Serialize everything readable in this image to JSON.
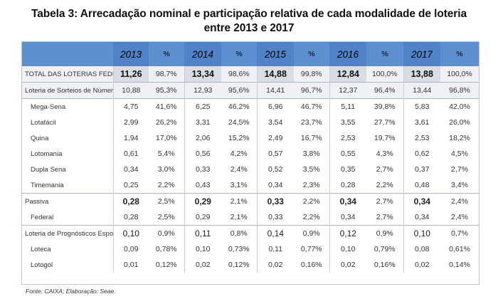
{
  "title": {
    "line1": "Tabela 3: Arrecadação nominal e participação relativa de cada modalidade de loteria",
    "line2": "entre 2013 e 2017"
  },
  "header": {
    "columns": [
      "2013",
      "%",
      "2014",
      "%",
      "2015",
      "%",
      "2016",
      "%",
      "2017",
      "%"
    ]
  },
  "rows": [
    {
      "label": "TOTAL DAS LOTERIAS FEDERAIS",
      "values": [
        "11,26",
        "98,7%",
        "13,34",
        "98,6%",
        "14,88",
        "99,8%",
        "12,84",
        "100,0%",
        "13,88",
        "100,0%"
      ]
    },
    {
      "label": "Loteria de Sorteios de Números",
      "values": [
        "10,88",
        "95,3%",
        "12,93",
        "95,6%",
        "14,41",
        "96,7%",
        "12,37",
        "96,4%",
        "13,44",
        "96,8%"
      ]
    },
    {
      "label": "Mega-Sena",
      "values": [
        "4,75",
        "41,6%",
        "6,25",
        "46,2%",
        "6,96",
        "46,7%",
        "5,11",
        "39,8%",
        "5,83",
        "42,0%"
      ]
    },
    {
      "label": "Lotafácil",
      "values": [
        "2,99",
        "26,2%",
        "3,31",
        "24,5%",
        "3,54",
        "23,7%",
        "3,55",
        "27,7%",
        "3,61",
        "26,0%"
      ]
    },
    {
      "label": "Quina",
      "values": [
        "1,94",
        "17,0%",
        "2,06",
        "15,2%",
        "2,49",
        "16,7%",
        "2,53",
        "19,7%",
        "2,53",
        "18,2%"
      ]
    },
    {
      "label": "Lotomania",
      "values": [
        "0,61",
        "5,4%",
        "0,56",
        "4,2%",
        "0,57",
        "3,8%",
        "0,55",
        "4,3%",
        "0,62",
        "4,5%"
      ]
    },
    {
      "label": "Dupla Sena",
      "values": [
        "0,34",
        "3,0%",
        "0,33",
        "2,4%",
        "0,52",
        "3,5%",
        "0,35",
        "2,7%",
        "0,37",
        "2,7%"
      ]
    },
    {
      "label": "Timemania",
      "values": [
        "0,25",
        "2,2%",
        "0,43",
        "3,1%",
        "0,34",
        "2,3%",
        "0,28",
        "2,2%",
        "0,48",
        "3,4%"
      ]
    },
    {
      "label": "Passiva",
      "values": [
        "0,28",
        "2,5%",
        "0,29",
        "2,1%",
        "0,33",
        "2,2%",
        "0,34",
        "2,7%",
        "0,34",
        "2,4%"
      ]
    },
    {
      "label": "Federal",
      "values": [
        "0,28",
        "2,5%",
        "0,29",
        "2,1%",
        "0,33",
        "2,2%",
        "0,34",
        "2,7%",
        "0,34",
        "2,4%"
      ]
    },
    {
      "label": "Loteria de Prognósticos Esportivos",
      "values": [
        "0,10",
        "0,9%",
        "0,11",
        "0,8%",
        "0,14",
        "0,9%",
        "0,12",
        "0,9%",
        "0,10",
        "0,7%"
      ]
    },
    {
      "label": "Loteca",
      "values": [
        "0,09",
        "0,78%",
        "0,10",
        "0,73%",
        "0,11",
        "0,77%",
        "0,10",
        "0,79%",
        "0,08",
        "0,61%"
      ]
    },
    {
      "label": "Lotogol",
      "values": [
        "0,01",
        "0,12%",
        "0,02",
        "0,12%",
        "0,02",
        "0,16%",
        "0,02",
        "0,16%",
        "0,02",
        "0,14%"
      ]
    }
  ],
  "source": "Fonte: CAIXA; Elaboração: Seae."
}
